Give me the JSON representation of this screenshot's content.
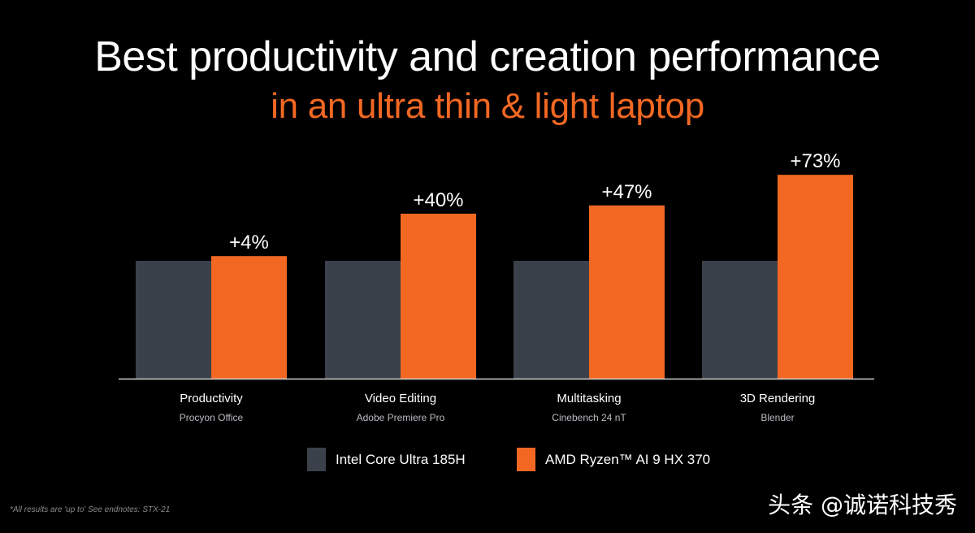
{
  "title": "Best productivity and creation performance",
  "subtitle": "in an ultra thin & light laptop",
  "colors": {
    "intel": "#3b414a",
    "amd": "#f26822",
    "axis": "#cfcfcf",
    "background": "#000000"
  },
  "chart_data": {
    "type": "bar",
    "categories": [
      "Productivity",
      "Video Editing",
      "Multitasking",
      "3D Rendering"
    ],
    "category_subtitles": [
      "Procyon Office",
      "Adobe Premiere Pro",
      "Cinebench 24 nT",
      "Blender"
    ],
    "series": [
      {
        "name": "Intel Core Ultra 185H",
        "values": [
          1.0,
          1.0,
          1.0,
          1.0
        ]
      },
      {
        "name": "AMD Ryzen™ AI 9 HX 370",
        "values": [
          1.04,
          1.4,
          1.47,
          1.73
        ]
      }
    ],
    "data_labels": [
      "+4%",
      "+40%",
      "+47%",
      "+73%"
    ],
    "ylim": [
      0,
      1.8
    ],
    "grid": false,
    "legend_placement": "bottom-center"
  },
  "footnote": "*All results are 'up to' See endnotes: STX-21",
  "watermark": "头条 @诚诺科技秀"
}
